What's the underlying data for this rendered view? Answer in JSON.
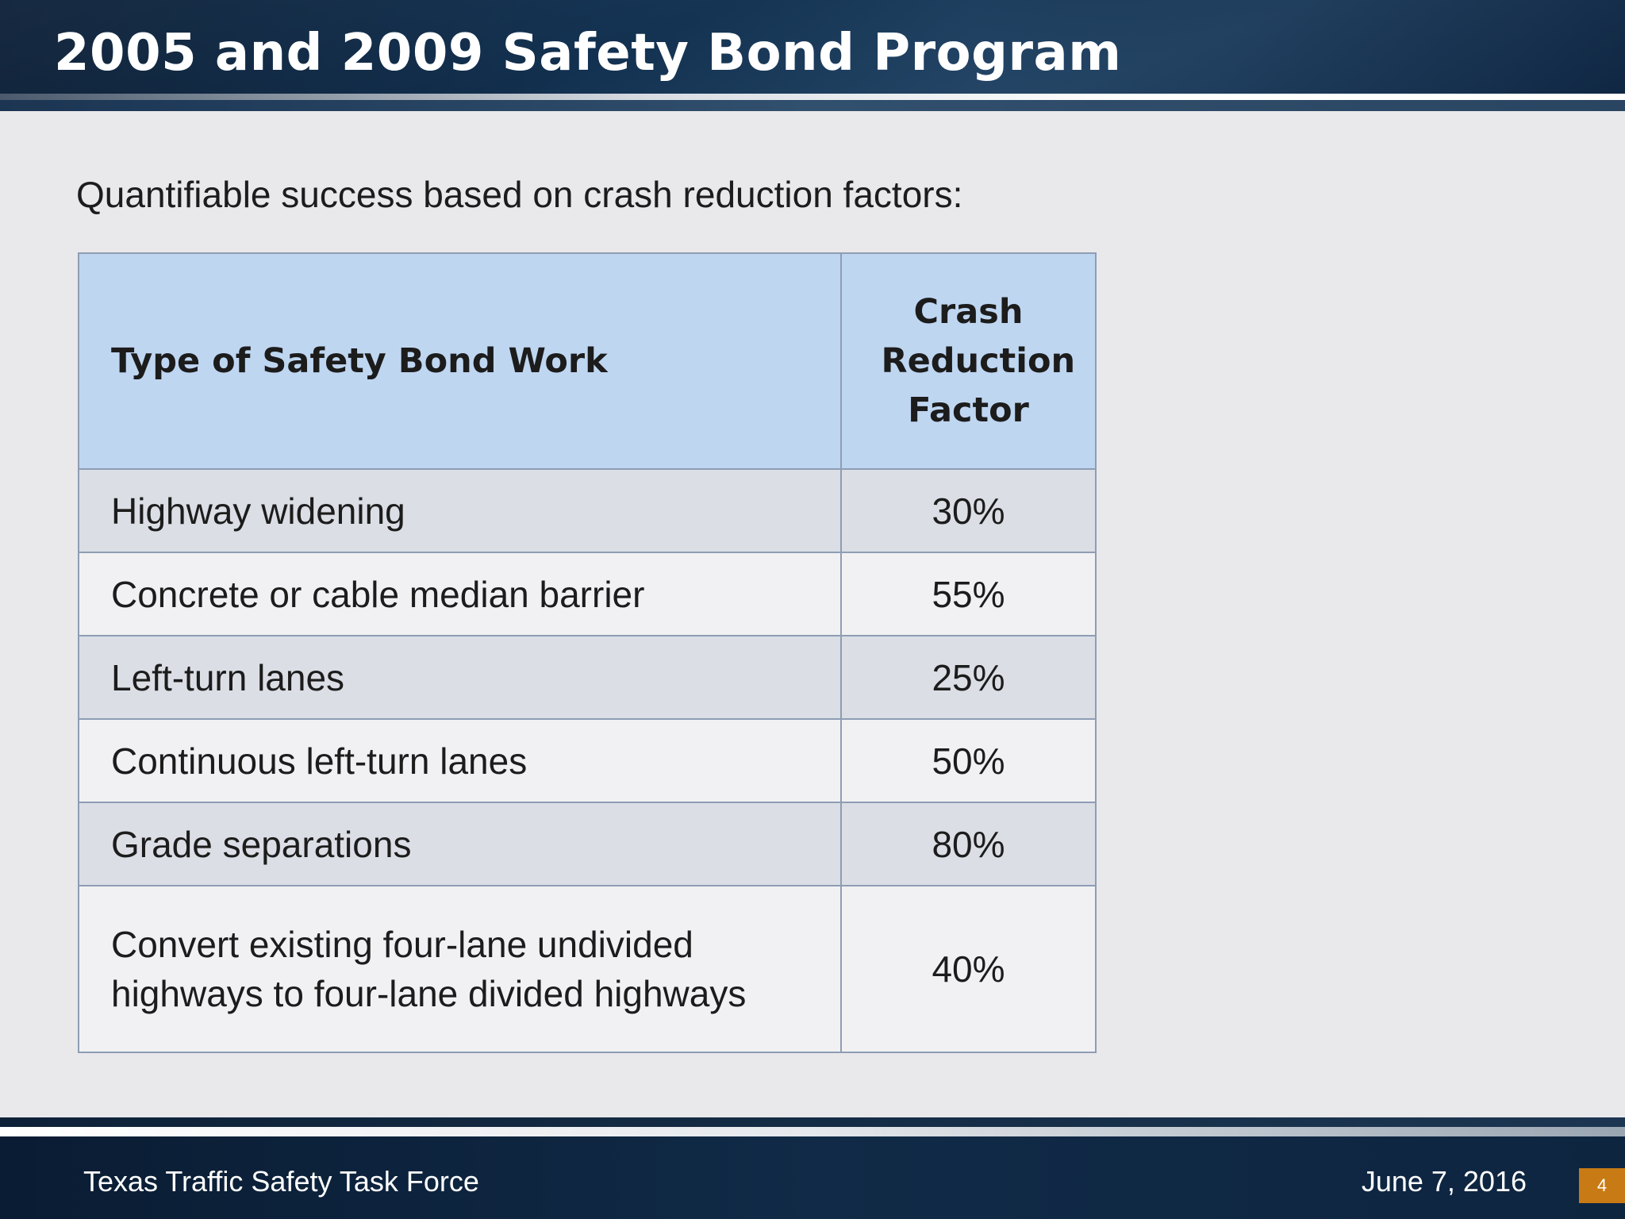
{
  "slide": {
    "title": "2005 and 2009 Safety Bond Program",
    "subtitle": "Quantifiable success based on crash reduction factors:"
  },
  "table": {
    "headers": [
      "Type of Safety Bond Work",
      "Crash Reduction Factor"
    ],
    "rows": [
      {
        "type": "Highway widening",
        "factor": "30%"
      },
      {
        "type": "Concrete or cable median barrier",
        "factor": "55%"
      },
      {
        "type": "Left-turn lanes",
        "factor": "25%"
      },
      {
        "type": "Continuous left-turn lanes",
        "factor": "50%"
      },
      {
        "type": "Grade separations",
        "factor": "80%"
      },
      {
        "type": "Convert existing four-lane undivided highways to four-lane divided highways",
        "factor": "40%"
      }
    ]
  },
  "footer": {
    "organization": "Texas Traffic Safety Task Force",
    "date": "June 7, 2016",
    "page_number": "4"
  }
}
